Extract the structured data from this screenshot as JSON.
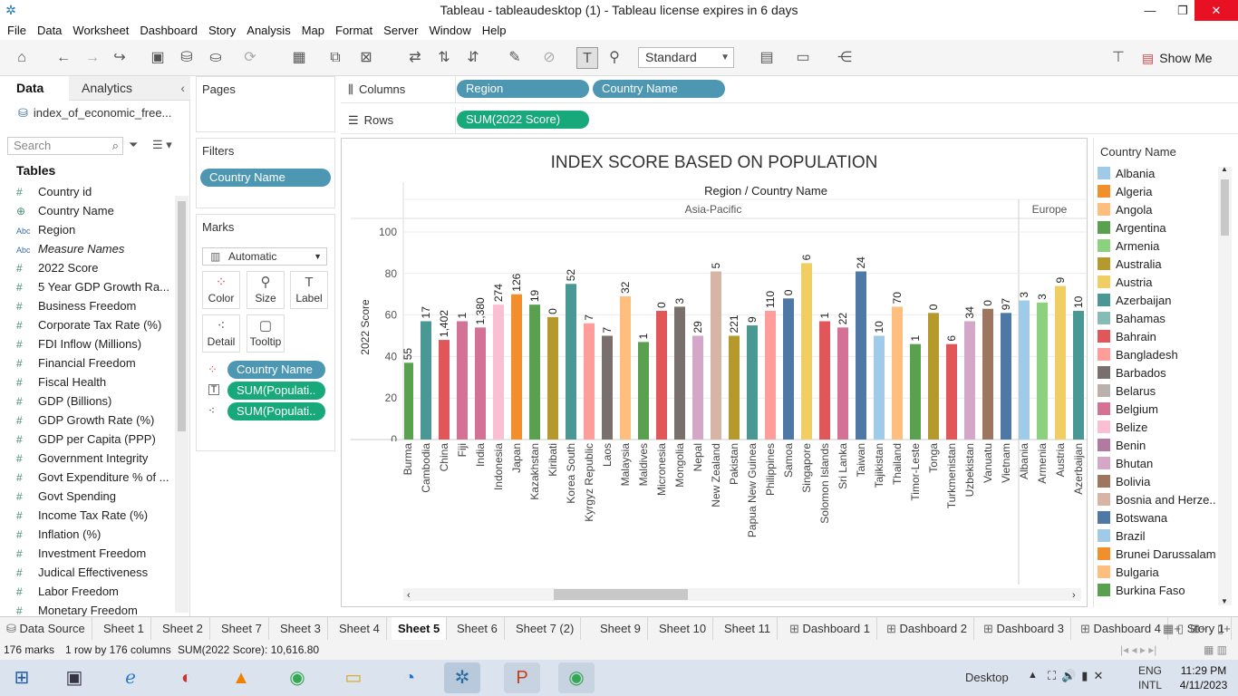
{
  "window": {
    "title": "Tableau - tableaudesktop (1) - Tableau license expires in 6 days"
  },
  "menu": [
    "File",
    "Data",
    "Worksheet",
    "Dashboard",
    "Story",
    "Analysis",
    "Map",
    "Format",
    "Server",
    "Window",
    "Help"
  ],
  "toolbar": {
    "fit_mode": "Standard",
    "show_me": "Show Me"
  },
  "data_pane": {
    "tab_data": "Data",
    "tab_analytics": "Analytics",
    "datasource": "index_of_economic_free...",
    "search_placeholder": "Search",
    "tables_heading": "Tables",
    "fields": [
      {
        "icon": "#",
        "name": "Country id"
      },
      {
        "icon": "globe",
        "name": "Country Name"
      },
      {
        "icon": "Abc",
        "name": "Region"
      },
      {
        "icon": "Abc",
        "name": "Measure Names"
      },
      {
        "icon": "#",
        "name": "2022 Score"
      },
      {
        "icon": "#",
        "name": "5 Year GDP Growth Ra..."
      },
      {
        "icon": "#",
        "name": "Business Freedom"
      },
      {
        "icon": "#",
        "name": "Corporate Tax Rate (%)"
      },
      {
        "icon": "#",
        "name": "FDI Inflow (Millions)"
      },
      {
        "icon": "#",
        "name": "Financial Freedom"
      },
      {
        "icon": "#",
        "name": "Fiscal Health"
      },
      {
        "icon": "#",
        "name": "GDP (Billions)"
      },
      {
        "icon": "#",
        "name": "GDP Growth Rate (%)"
      },
      {
        "icon": "#",
        "name": "GDP per Capita (PPP)"
      },
      {
        "icon": "#",
        "name": "Government Integrity"
      },
      {
        "icon": "#",
        "name": "Govt Expenditure % of ..."
      },
      {
        "icon": "#",
        "name": "Govt Spending"
      },
      {
        "icon": "#",
        "name": "Income Tax Rate (%)"
      },
      {
        "icon": "#",
        "name": "Inflation (%)"
      },
      {
        "icon": "#",
        "name": "Investment Freedom"
      },
      {
        "icon": "#",
        "name": "Judical Effectiveness"
      },
      {
        "icon": "#",
        "name": "Labor Freedom"
      },
      {
        "icon": "#",
        "name": "Monetary Freedom"
      }
    ]
  },
  "pages": {
    "title": "Pages"
  },
  "filters": {
    "title": "Filters",
    "pill": "Country Name"
  },
  "marks": {
    "title": "Marks",
    "type": "Automatic",
    "buttons": [
      "Color",
      "Size",
      "Label",
      "Detail",
      "Tooltip"
    ],
    "pills": [
      "Country Name",
      "SUM(Populati..",
      "SUM(Populati.."
    ]
  },
  "shelves": {
    "columns_label": "Columns",
    "rows_label": "Rows",
    "columns": [
      "Region",
      "Country Name"
    ],
    "rows": [
      "SUM(2022 Score)"
    ]
  },
  "legend": {
    "title": "Country Name",
    "items": [
      {
        "name": "Albania",
        "color": "#a0cbe8"
      },
      {
        "name": "Algeria",
        "color": "#f28e2b"
      },
      {
        "name": "Angola",
        "color": "#ffbe7d"
      },
      {
        "name": "Argentina",
        "color": "#59a14f"
      },
      {
        "name": "Armenia",
        "color": "#8cd17d"
      },
      {
        "name": "Australia",
        "color": "#b6992d"
      },
      {
        "name": "Austria",
        "color": "#f1ce63"
      },
      {
        "name": "Azerbaijan",
        "color": "#499894"
      },
      {
        "name": "Bahamas",
        "color": "#86bcb6"
      },
      {
        "name": "Bahrain",
        "color": "#e15759"
      },
      {
        "name": "Bangladesh",
        "color": "#ff9d9a"
      },
      {
        "name": "Barbados",
        "color": "#79706e"
      },
      {
        "name": "Belarus",
        "color": "#bab0ac"
      },
      {
        "name": "Belgium",
        "color": "#d37295"
      },
      {
        "name": "Belize",
        "color": "#fabfd2"
      },
      {
        "name": "Benin",
        "color": "#b07aa1"
      },
      {
        "name": "Bhutan",
        "color": "#d4a6c8"
      },
      {
        "name": "Bolivia",
        "color": "#9d7660"
      },
      {
        "name": "Bosnia and Herze..",
        "color": "#d7b5a6"
      },
      {
        "name": "Botswana",
        "color": "#4e79a7"
      },
      {
        "name": "Brazil",
        "color": "#a0cbe8"
      },
      {
        "name": "Brunei Darussalam",
        "color": "#f28e2b"
      },
      {
        "name": "Bulgaria",
        "color": "#ffbe7d"
      },
      {
        "name": "Burkina Faso",
        "color": "#59a14f"
      }
    ]
  },
  "chart_data": {
    "type": "bar",
    "title": "INDEX SCORE BASED ON POPULATION",
    "header": "Region / Country Name",
    "ylabel": "2022 Score",
    "ylim": [
      0,
      100
    ],
    "yticks": [
      0,
      20,
      40,
      60,
      80,
      100
    ],
    "grid": true,
    "regions": [
      {
        "name": "Asia-Pacific",
        "count": 34
      },
      {
        "name": "Europe",
        "count": 4
      }
    ],
    "categories": [
      "Burma",
      "Cambodia",
      "China",
      "Fiji",
      "India",
      "Indonesia",
      "Japan",
      "Kazakhstan",
      "Kiribati",
      "Korea South",
      "Kyrgyz Republic",
      "Laos",
      "Malaysia",
      "Maldives",
      "Micronesia",
      "Mongolia",
      "Nepal",
      "New Zealand",
      "Pakistan",
      "Papua New Guinea",
      "Philippines",
      "Samoa",
      "Singapore",
      "Solomon Islands",
      "Sri Lanka",
      "Taiwan",
      "Tajikistan",
      "Thailand",
      "Timor-Leste",
      "Tonga",
      "Turkmenistan",
      "Uzbekistan",
      "Vanuatu",
      "Vietnam",
      "Albania",
      "Armenia",
      "Austria",
      "Azerbaijan"
    ],
    "values": [
      37,
      57,
      48,
      57,
      54,
      65,
      70,
      65,
      59,
      75,
      56,
      50,
      69,
      47,
      62,
      64,
      50,
      81,
      50,
      55,
      62,
      68,
      85,
      57,
      54,
      81,
      50,
      64,
      46,
      61,
      46,
      57,
      63,
      61,
      67,
      66,
      74,
      62
    ],
    "labels": [
      "55",
      "17",
      "1,402",
      "1",
      "1,380",
      "274",
      "126",
      "19",
      "0",
      "52",
      "7",
      "7",
      "32",
      "1",
      "0",
      "3",
      "29",
      "5",
      "221",
      "9",
      "110",
      "0",
      "6",
      "1",
      "22",
      "24",
      "10",
      "70",
      "1",
      "0",
      "6",
      "34",
      "0",
      "97",
      "3",
      "3",
      "9",
      "10"
    ],
    "colors": [
      "#59a14f",
      "#499894",
      "#e15759",
      "#d37295",
      "#d37295",
      "#fabfd2",
      "#f28e2b",
      "#59a14f",
      "#b6992d",
      "#499894",
      "#ff9d9a",
      "#79706e",
      "#ffbe7d",
      "#59a14f",
      "#e15759",
      "#79706e",
      "#d4a6c8",
      "#d7b5a6",
      "#b6992d",
      "#499894",
      "#ff9d9a",
      "#4e79a7",
      "#f1ce63",
      "#e15759",
      "#d37295",
      "#4e79a7",
      "#a0cbe8",
      "#ffbe7d",
      "#59a14f",
      "#b6992d",
      "#e15759",
      "#d4a6c8",
      "#9d7660",
      "#4e79a7",
      "#a0cbe8",
      "#8cd17d",
      "#f1ce63",
      "#499894"
    ]
  },
  "sheet_tabs": [
    "Data Source",
    "Sheet 1",
    "Sheet 2",
    "Sheet 7",
    "Sheet 3",
    "Sheet 4",
    "Sheet 5",
    "Sheet 6",
    "Sheet 7 (2)",
    "Sheet 9",
    "Sheet 10",
    "Sheet 11",
    "Dashboard 1",
    "Dashboard 2",
    "Dashboard 3",
    "Dashboard 4",
    "Story 1"
  ],
  "active_tab": "Sheet 5",
  "status": {
    "marks": "176 marks",
    "dims": "1 row by 176 columns",
    "sum": "SUM(2022 Score): 10,616.80"
  },
  "taskbar": {
    "desktop": "Desktop",
    "lang1": "ENG",
    "lang2": "INTL",
    "time": "11:29 PM",
    "date": "4/11/2023"
  }
}
